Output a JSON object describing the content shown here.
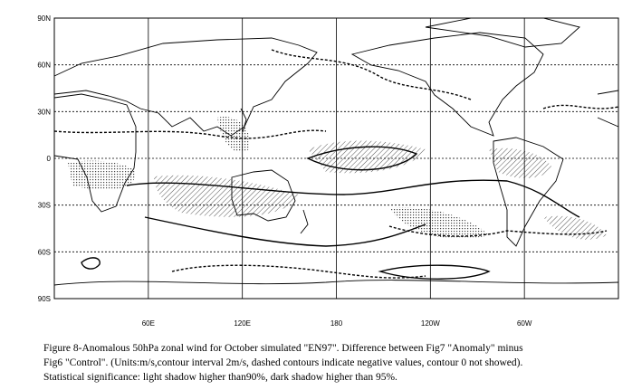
{
  "map": {
    "lat_labels": [
      "90N",
      "60N",
      "30N",
      "0",
      "30S",
      "60S",
      "90S"
    ],
    "lon_labels": [
      "60E",
      "120E",
      "180",
      "120W",
      "60W"
    ]
  },
  "caption": {
    "lines": [
      "Figure 8-Anomalous 50hPa zonal wind for October simulated \"EN97\". Difference between Fig7 \"Anomaly\" minus",
      "Fig6 \"Control\". (Units:m/s,contour interval 2m/s, dashed contours indicate negative values, contour 0 not showed).",
      "Statistical significance: light shadow higher than90%, dark shadow higher than 95%."
    ]
  }
}
